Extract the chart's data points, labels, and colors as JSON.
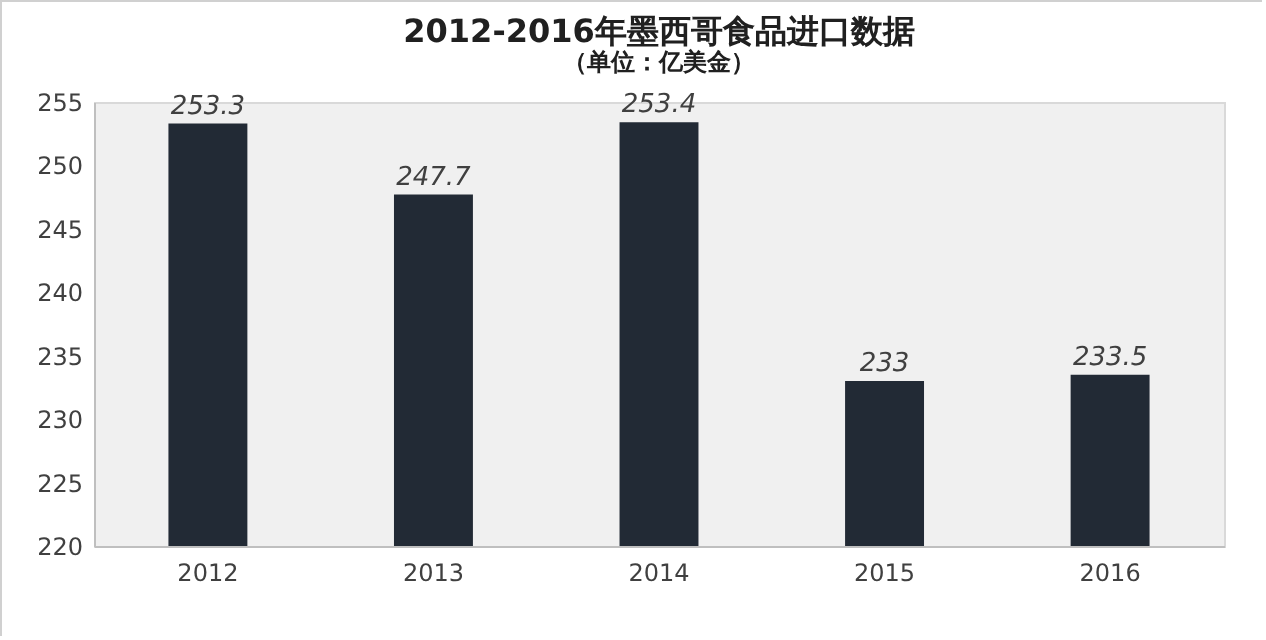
{
  "chart_data": {
    "type": "bar",
    "title": "2012-2016年墨西哥食品进口数据",
    "subtitle": "（单位：亿美金）",
    "categories": [
      "2012",
      "2013",
      "2014",
      "2015",
      "2016"
    ],
    "values": [
      253.3,
      247.7,
      253.4,
      233,
      233.5
    ],
    "color": "#222a35",
    "ylim": [
      220,
      255
    ],
    "yticks": [
      220,
      225,
      230,
      235,
      240,
      245,
      250,
      255
    ],
    "data_labels": true,
    "grid": false
  }
}
